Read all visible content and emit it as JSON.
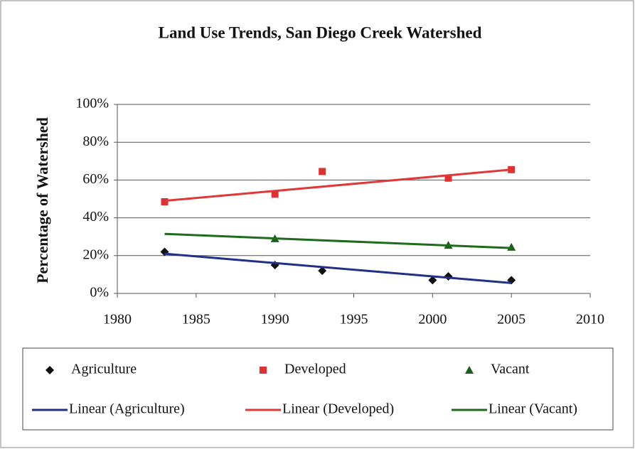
{
  "chart_data": {
    "type": "scatter",
    "title": "Land Use Trends, San Diego Creek Watershed",
    "y_label": "Percentage of Watershed",
    "xlim": [
      1980,
      2010
    ],
    "xticks": [
      1980,
      1985,
      1990,
      1995,
      2000,
      2005,
      2010
    ],
    "ylim": [
      0,
      100
    ],
    "yticks": [
      {
        "value": 0,
        "label": "0%"
      },
      {
        "value": 20,
        "label": "20%"
      },
      {
        "value": 40,
        "label": "40%"
      },
      {
        "value": 60,
        "label": "60%"
      },
      {
        "value": 80,
        "label": "80%"
      },
      {
        "value": 100,
        "label": "100%"
      }
    ],
    "grid": true,
    "series": [
      {
        "name": "Agriculture",
        "color": "#111111",
        "marker": "diamond",
        "x": [
          1983,
          1990,
          1993,
          2000,
          2001,
          2005
        ],
        "values": [
          22,
          15,
          12,
          7,
          9,
          7
        ]
      },
      {
        "name": "Developed",
        "color": "#e03030",
        "marker": "square",
        "x": [
          1983,
          1990,
          1993,
          2001,
          2005
        ],
        "values": [
          48.5,
          52.5,
          64.5,
          61,
          65.5
        ]
      },
      {
        "name": "Vacant",
        "color": "#1a5e1a",
        "marker": "triangle",
        "x": [
          1990,
          2001,
          2005
        ],
        "values": [
          29,
          25.5,
          24.5
        ]
      },
      {
        "name": "Linear (Agriculture)",
        "color": "#1f2f8a",
        "marker": "line",
        "x": [
          1983,
          2005
        ],
        "values": [
          21,
          5.5
        ]
      },
      {
        "name": "Linear (Developed)",
        "color": "#e03838",
        "marker": "line",
        "x": [
          1983,
          2005
        ],
        "values": [
          49,
          65.5
        ]
      },
      {
        "name": "Linear (Vacant)",
        "color": "#1e6b1e",
        "marker": "line",
        "x": [
          1983,
          2005
        ],
        "values": [
          31.5,
          24
        ]
      }
    ]
  }
}
